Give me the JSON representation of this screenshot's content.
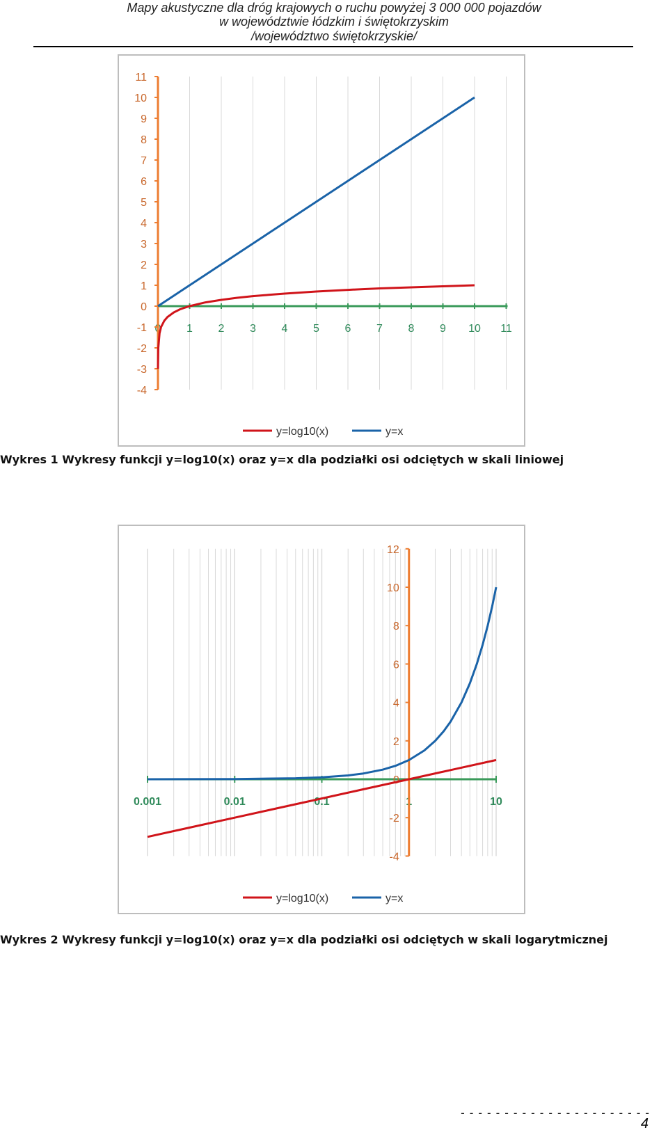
{
  "header": {
    "line1": "Mapy akustyczne dla dróg krajowych o ruchu powyżej 3 000 000 pojazdów",
    "line2": "w województwie łódzkim i świętokrzyskim",
    "line3": "/województwo świętokrzyskie/"
  },
  "colors": {
    "log_series": "#d0141a",
    "x_series": "#1a63a8",
    "y_axis": "#ed7d31",
    "x_axis": "#3a9a5a",
    "x_tick_text": "#2f8a5a",
    "y_tick_text": "#c8662a",
    "grid": "#d9d9d9"
  },
  "chart_data": [
    {
      "type": "line",
      "x_scale": "linear",
      "xlim": [
        -0.1,
        11
      ],
      "ylim": [
        -4,
        11
      ],
      "x_ticks": [
        "0",
        "1",
        "2",
        "3",
        "4",
        "5",
        "6",
        "7",
        "8",
        "9",
        "10",
        "11"
      ],
      "y_ticks": [
        "11",
        "10",
        "9",
        "8",
        "7",
        "6",
        "5",
        "4",
        "3",
        "2",
        "1",
        "0",
        "-1",
        "-2",
        "-3",
        "-4"
      ],
      "series": [
        {
          "name": "y=log10(x)",
          "x": [
            0.001,
            0.01,
            0.05,
            0.1,
            0.2,
            0.3,
            0.5,
            0.7,
            1,
            1.5,
            2,
            2.5,
            3,
            3.5,
            4,
            5,
            6,
            7,
            8,
            9,
            10
          ],
          "values": [
            -3,
            -2,
            -1.3,
            -1,
            -0.7,
            -0.52,
            -0.3,
            -0.15,
            0,
            0.18,
            0.3,
            0.4,
            0.48,
            0.54,
            0.6,
            0.7,
            0.78,
            0.85,
            0.9,
            0.95,
            1
          ]
        },
        {
          "name": "y=x",
          "x": [
            0,
            1,
            2,
            3,
            4,
            5,
            6,
            7,
            8,
            9,
            10
          ],
          "values": [
            0,
            1,
            2,
            3,
            4,
            5,
            6,
            7,
            8,
            9,
            10
          ]
        }
      ],
      "legend": [
        "y=log10(x)",
        "y=x"
      ]
    },
    {
      "type": "line",
      "x_scale": "log",
      "xlim": [
        0.001,
        10
      ],
      "ylim": [
        -4,
        12
      ],
      "x_ticks": [
        "0.001",
        "0.01",
        "0.1",
        "1",
        "10"
      ],
      "x_tick_values": [
        0.001,
        0.01,
        0.1,
        1,
        10
      ],
      "y_ticks": [
        "12",
        "10",
        "8",
        "6",
        "4",
        "2",
        "0",
        "-2",
        "-4"
      ],
      "y_tick_values": [
        12,
        10,
        8,
        6,
        4,
        2,
        0,
        -2,
        -4
      ],
      "series": [
        {
          "name": "y=log10(x)",
          "x": [
            0.001,
            0.003,
            0.01,
            0.03,
            0.1,
            0.3,
            1,
            3,
            10
          ],
          "values": [
            -3,
            -2.52,
            -2,
            -1.52,
            -1,
            -0.52,
            0,
            0.48,
            1
          ]
        },
        {
          "name": "y=x",
          "x": [
            0.001,
            0.01,
            0.05,
            0.1,
            0.2,
            0.3,
            0.5,
            0.7,
            1,
            1.5,
            2,
            2.5,
            3,
            4,
            5,
            6,
            7,
            8,
            9,
            10
          ],
          "values": [
            0.001,
            0.01,
            0.05,
            0.1,
            0.2,
            0.3,
            0.5,
            0.7,
            1,
            1.5,
            2,
            2.5,
            3,
            4,
            5,
            6,
            7,
            8,
            9,
            10
          ]
        }
      ],
      "legend": [
        "y=log10(x)",
        "y=x"
      ]
    }
  ],
  "captions": {
    "chart1": "Wykres 1 Wykresy funkcji y=log10(x) oraz y=x dla podziałki osi odciętych w skali liniowej",
    "chart2": "Wykres 2 Wykresy funkcji y=log10(x) oraz y=x dla podziałki osi odciętych w skali logarytmicznej"
  },
  "footer": {
    "dashes": "----------------------",
    "page_number": "4"
  }
}
